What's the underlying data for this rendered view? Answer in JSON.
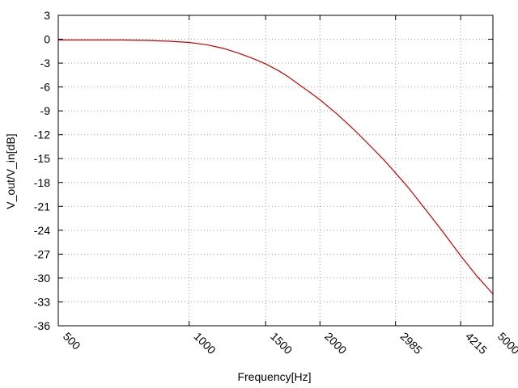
{
  "chart_data": {
    "type": "line",
    "title": "",
    "xlabel": "Frequency[Hz]",
    "ylabel": "V_out/V_in[dB]",
    "x_scale": "log",
    "xlim": [
      500,
      5000
    ],
    "ylim": [
      -36,
      3
    ],
    "x_ticks": [
      500,
      1000,
      1500,
      2000,
      2985,
      4215,
      5000
    ],
    "y_ticks": [
      3,
      0,
      -3,
      -6,
      -9,
      -12,
      -15,
      -18,
      -21,
      -24,
      -27,
      -30,
      -33,
      -36
    ],
    "grid": true,
    "legend": "none",
    "series": [
      {
        "color": "#cc0000",
        "x": [
          500,
          600,
          700,
          800,
          900,
          1000,
          1100,
          1200,
          1300,
          1400,
          1500,
          1600,
          1700,
          1800,
          1900,
          2000,
          2200,
          2400,
          2600,
          2800,
          2985,
          3200,
          3500,
          3800,
          4215,
          4600,
          5000
        ],
        "y": [
          -0.1,
          -0.1,
          -0.1,
          -0.15,
          -0.25,
          -0.4,
          -0.7,
          -1.15,
          -1.75,
          -2.4,
          -3.1,
          -3.9,
          -4.8,
          -5.8,
          -6.7,
          -7.6,
          -9.5,
          -11.4,
          -13.3,
          -15.1,
          -16.8,
          -18.7,
          -21.4,
          -23.9,
          -27.2,
          -29.8,
          -32.0
        ]
      }
    ]
  }
}
